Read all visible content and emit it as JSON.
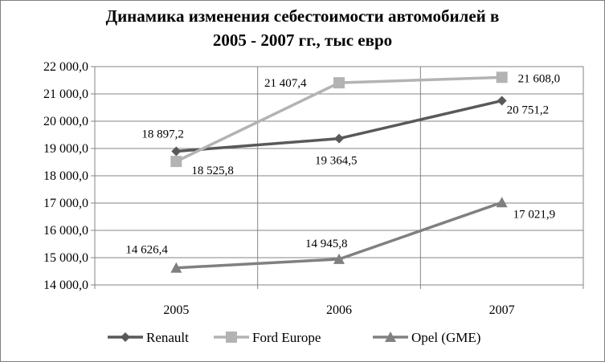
{
  "chart_data": {
    "type": "line",
    "title": [
      "Динамика изменения себестоимости автомобилей в",
      "2005 - 2007 гг.,   тыс евро"
    ],
    "categories": [
      "2005",
      "2006",
      "2007"
    ],
    "ylim": [
      14000,
      22000
    ],
    "ytick_step": 1000,
    "ytick_labels": [
      "14 000,0",
      "15 000,0",
      "16 000,0",
      "17 000,0",
      "18 000,0",
      "19 000,0",
      "20 000,0",
      "21 000,0",
      "22 000,0"
    ],
    "grid": true,
    "legend_position": "bottom",
    "series": [
      {
        "name": "Renault",
        "values": [
          18897.2,
          19364.5,
          20751.2
        ],
        "labels": [
          "18 897,2",
          "19 364,5",
          "20 751,2"
        ],
        "color": "#595959",
        "marker": "diamond"
      },
      {
        "name": "Ford Europe",
        "values": [
          18525.8,
          21407.4,
          21608.0
        ],
        "labels": [
          "18 525,8",
          "21 407,4",
          "21 608,0"
        ],
        "color": "#b3b3b3",
        "marker": "square"
      },
      {
        "name": "Opel (GME)",
        "values": [
          14626.4,
          14945.8,
          17021.9
        ],
        "labels": [
          "14 626,4",
          "14 945,8",
          "17 021,9"
        ],
        "color": "#808080",
        "marker": "triangle"
      }
    ]
  }
}
